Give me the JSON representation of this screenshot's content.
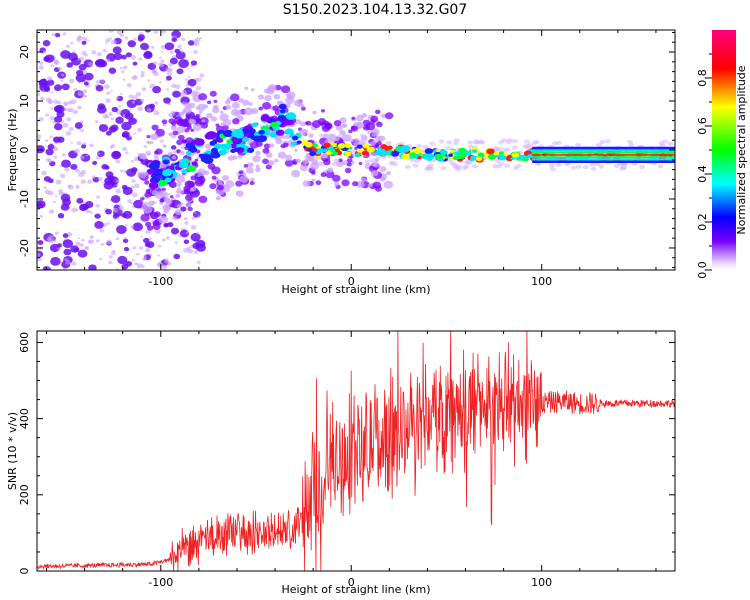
{
  "title": "S150.2023.104.13.32.G07",
  "chart_data": [
    {
      "type": "heatmap",
      "xlabel": "Height of straight line (km)",
      "ylabel": "Frequency (Hz)",
      "xlim": [
        -165,
        170
      ],
      "ylim": [
        -24.5,
        24.5
      ],
      "x_ticks": [
        -100,
        0,
        100
      ],
      "y_ticks": [
        -20,
        -10,
        0,
        10,
        20
      ],
      "colorbar": {
        "label": "Normalized spectral amplitude",
        "range": [
          0,
          1
        ],
        "ticks": [
          "0.0",
          "0.2",
          "0.4",
          "0.6",
          "0.8"
        ],
        "colors": [
          "#ffffff",
          "#7a00ff",
          "#0000ff",
          "#00ffff",
          "#00ff00",
          "#ffff00",
          "#ff0000",
          "#ff0080"
        ]
      },
      "ridge": {
        "x": [
          -100,
          -90,
          -80,
          -70,
          -60,
          -50,
          -40,
          -35,
          -30,
          -20,
          -10,
          0,
          20,
          40,
          60,
          80,
          100,
          120,
          140,
          170
        ],
        "y": [
          -5,
          -3,
          0,
          1,
          1,
          3,
          5,
          7,
          3,
          0,
          0,
          0,
          0,
          -1,
          -1,
          -1,
          -1,
          -1,
          -1,
          -1
        ]
      }
    },
    {
      "type": "line",
      "xlabel": "Height of straight line (km)",
      "ylabel": "SNR (10 * v/v)",
      "xlim": [
        -165,
        170
      ],
      "ylim": [
        0,
        630
      ],
      "x_ticks": [
        -100,
        0,
        100
      ],
      "y_ticks": [
        0,
        200,
        400,
        600
      ],
      "series": [
        {
          "color": "#ee2222",
          "x": [
            -165,
            -140,
            -120,
            -105,
            -95,
            -90,
            -80,
            -70,
            -60,
            -50,
            -40,
            -30,
            -25,
            -20,
            -15,
            -10,
            -5,
            0,
            10,
            20,
            30,
            40,
            50,
            60,
            70,
            80,
            90,
            100,
            110,
            120,
            130,
            140,
            150,
            160,
            170
          ],
          "y": [
            12,
            14,
            16,
            18,
            30,
            50,
            70,
            90,
            100,
            100,
            100,
            110,
            140,
            200,
            240,
            270,
            290,
            300,
            330,
            360,
            380,
            400,
            420,
            430,
            440,
            440,
            440,
            440,
            445,
            440,
            440,
            440,
            440,
            440,
            440
          ]
        }
      ]
    }
  ]
}
